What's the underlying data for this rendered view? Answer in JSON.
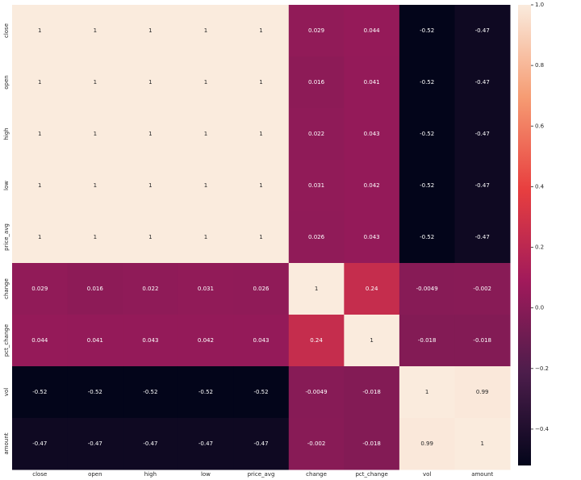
{
  "chart_data": {
    "type": "heatmap",
    "categories": [
      "close",
      "open",
      "high",
      "low",
      "price_avg",
      "change",
      "pct_change",
      "vol",
      "amount"
    ],
    "values": [
      [
        1,
        1,
        1,
        1,
        1,
        0.029,
        0.044,
        -0.52,
        -0.47
      ],
      [
        1,
        1,
        1,
        1,
        1,
        0.016,
        0.041,
        -0.52,
        -0.47
      ],
      [
        1,
        1,
        1,
        1,
        1,
        0.022,
        0.043,
        -0.52,
        -0.47
      ],
      [
        1,
        1,
        1,
        1,
        1,
        0.031,
        0.042,
        -0.52,
        -0.47
      ],
      [
        1,
        1,
        1,
        1,
        1,
        0.026,
        0.043,
        -0.52,
        -0.47
      ],
      [
        0.029,
        0.016,
        0.022,
        0.031,
        0.026,
        1,
        0.24,
        -0.0049,
        -0.002
      ],
      [
        0.044,
        0.041,
        0.043,
        0.042,
        0.043,
        0.24,
        1,
        -0.018,
        -0.018
      ],
      [
        -0.52,
        -0.52,
        -0.52,
        -0.52,
        -0.52,
        -0.0049,
        -0.018,
        1,
        0.99
      ],
      [
        -0.47,
        -0.47,
        -0.47,
        -0.47,
        -0.47,
        -0.002,
        -0.018,
        0.99,
        1
      ]
    ],
    "zlim": [
      -0.52,
      1
    ],
    "zticks": [
      {
        "value": 1,
        "label": "1.0"
      },
      {
        "value": 0.8,
        "label": "0.8"
      },
      {
        "value": 0.6,
        "label": "0.6"
      },
      {
        "value": 0.4,
        "label": "0.4"
      },
      {
        "value": 0.2,
        "label": "0.2"
      },
      {
        "value": 0,
        "label": "0.0"
      },
      {
        "value": -0.2,
        "label": "−0.2"
      },
      {
        "value": -0.4,
        "label": "−0.4"
      }
    ],
    "colormap": [
      "#03051a",
      "#4c1d4b",
      "#a11a5b",
      "#e83f3f",
      "#f69c73",
      "#faebdd"
    ]
  }
}
